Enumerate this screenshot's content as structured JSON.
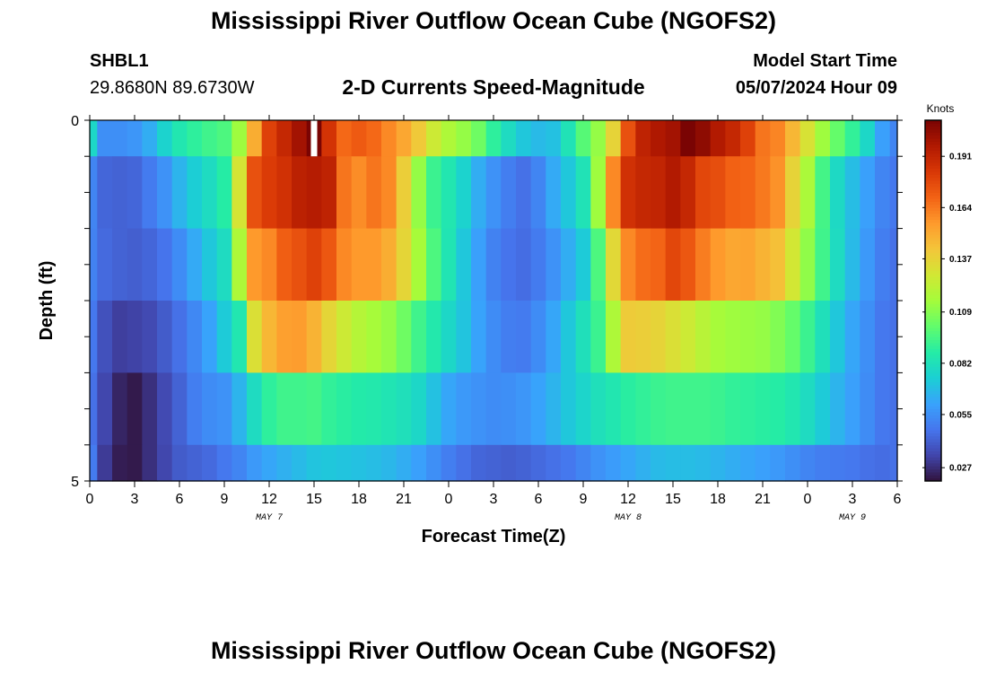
{
  "header": {
    "title": "Mississippi River Outflow Ocean Cube (NGOFS2)",
    "station_id": "SHBL1",
    "station_coords": "29.8680N  89.6730W",
    "plot_title": "2-D Currents Speed-Magnitude",
    "start_label": "Model Start Time",
    "start_value": "05/07/2024 Hour 09"
  },
  "footer": {
    "title": "Mississippi River Outflow Ocean Cube (NGOFS2)"
  },
  "chart_data": {
    "type": "heatmap",
    "title": "2-D Currents Speed-Magnitude",
    "xlabel": "Forecast Time(Z)",
    "ylabel": "Depth (ft)",
    "x_tick_labels": [
      "0",
      "3",
      "6",
      "9",
      "12",
      "15",
      "18",
      "21",
      "0",
      "3",
      "6",
      "9",
      "12",
      "15",
      "18",
      "21",
      "0",
      "3",
      "6"
    ],
    "y_tick_labels": [
      "0",
      "5"
    ],
    "ylim": [
      0,
      5
    ],
    "day_labels": [
      {
        "text": "MAY 7",
        "hour": 12
      },
      {
        "text": "MAY 8",
        "hour": 36
      },
      {
        "text": "MAY 9",
        "hour": 51
      }
    ],
    "colorbar": {
      "label": "Knots",
      "ticks": [
        "0.191",
        "0.164",
        "0.137",
        "0.109",
        "0.082",
        "0.055",
        "0.027"
      ],
      "tick_values": [
        0.191,
        0.164,
        0.137,
        0.109,
        0.082,
        0.055,
        0.027
      ],
      "range": [
        0.02,
        0.21
      ],
      "colors": [
        "#30123b",
        "#4145ab",
        "#4675ed",
        "#39a2fc",
        "#1bcfd4",
        "#24eca6",
        "#61fc6c",
        "#a4fc3b",
        "#d1e834",
        "#f3c63a",
        "#fe9b2d",
        "#f36315",
        "#d93806",
        "#b11901",
        "#7a0403"
      ]
    },
    "time_hours_start": 0,
    "time_hours_end": 54,
    "time_step_hours": 1,
    "layers": [
      {
        "depth_range": [
          0.0,
          0.5
        ],
        "values": [
          0.078,
          0.055,
          0.055,
          0.057,
          0.064,
          0.076,
          0.085,
          0.09,
          0.094,
          0.097,
          0.114,
          0.15,
          0.18,
          0.19,
          0.2,
          0.21,
          0.185,
          0.168,
          0.172,
          0.168,
          0.16,
          0.152,
          0.141,
          0.127,
          0.118,
          0.112,
          0.104,
          0.09,
          0.08,
          0.072,
          0.068,
          0.07,
          0.083,
          0.099,
          0.112,
          0.137,
          0.175,
          0.192,
          0.197,
          0.2,
          0.21,
          0.205,
          0.196,
          0.19,
          0.18,
          0.165,
          0.161,
          0.147,
          0.131,
          0.114,
          0.102,
          0.091,
          0.078,
          0.06,
          0.052
        ]
      },
      {
        "depth_range": [
          0.5,
          1.5
        ],
        "values": [
          0.052,
          0.043,
          0.042,
          0.043,
          0.049,
          0.056,
          0.066,
          0.074,
          0.08,
          0.088,
          0.13,
          0.175,
          0.182,
          0.186,
          0.193,
          0.195,
          0.192,
          0.165,
          0.159,
          0.165,
          0.16,
          0.139,
          0.112,
          0.093,
          0.085,
          0.076,
          0.064,
          0.056,
          0.05,
          0.046,
          0.052,
          0.063,
          0.072,
          0.083,
          0.114,
          0.16,
          0.186,
          0.19,
          0.191,
          0.196,
          0.19,
          0.178,
          0.176,
          0.17,
          0.169,
          0.164,
          0.158,
          0.137,
          0.117,
          0.095,
          0.079,
          0.069,
          0.06,
          0.052,
          0.048
        ]
      },
      {
        "depth_range": [
          1.5,
          2.5
        ],
        "values": [
          0.051,
          0.044,
          0.042,
          0.041,
          0.043,
          0.047,
          0.054,
          0.063,
          0.072,
          0.08,
          0.118,
          0.156,
          0.16,
          0.171,
          0.175,
          0.18,
          0.173,
          0.16,
          0.156,
          0.156,
          0.15,
          0.136,
          0.116,
          0.097,
          0.084,
          0.072,
          0.06,
          0.051,
          0.047,
          0.045,
          0.049,
          0.056,
          0.064,
          0.073,
          0.097,
          0.135,
          0.16,
          0.167,
          0.169,
          0.178,
          0.173,
          0.163,
          0.156,
          0.152,
          0.153,
          0.148,
          0.144,
          0.129,
          0.111,
          0.094,
          0.08,
          0.068,
          0.058,
          0.05,
          0.046
        ]
      },
      {
        "depth_range": [
          2.5,
          3.5
        ],
        "values": [
          0.048,
          0.037,
          0.032,
          0.033,
          0.035,
          0.04,
          0.046,
          0.053,
          0.061,
          0.073,
          0.085,
          0.132,
          0.147,
          0.154,
          0.155,
          0.148,
          0.136,
          0.127,
          0.12,
          0.116,
          0.112,
          0.104,
          0.094,
          0.086,
          0.078,
          0.071,
          0.061,
          0.054,
          0.05,
          0.049,
          0.054,
          0.062,
          0.072,
          0.082,
          0.093,
          0.118,
          0.14,
          0.139,
          0.137,
          0.132,
          0.127,
          0.121,
          0.116,
          0.114,
          0.113,
          0.112,
          0.108,
          0.102,
          0.093,
          0.082,
          0.072,
          0.062,
          0.055,
          0.048,
          0.046
        ]
      },
      {
        "depth_range": [
          3.5,
          4.5
        ],
        "values": [
          0.046,
          0.034,
          0.025,
          0.022,
          0.028,
          0.035,
          0.042,
          0.05,
          0.054,
          0.056,
          0.066,
          0.08,
          0.09,
          0.094,
          0.094,
          0.095,
          0.091,
          0.089,
          0.087,
          0.086,
          0.084,
          0.082,
          0.078,
          0.07,
          0.062,
          0.058,
          0.056,
          0.054,
          0.055,
          0.057,
          0.061,
          0.066,
          0.072,
          0.077,
          0.082,
          0.085,
          0.089,
          0.091,
          0.093,
          0.094,
          0.094,
          0.094,
          0.093,
          0.091,
          0.09,
          0.089,
          0.088,
          0.085,
          0.08,
          0.073,
          0.066,
          0.06,
          0.054,
          0.048,
          0.046
        ]
      },
      {
        "depth_range": [
          4.5,
          5.0
        ],
        "values": [
          0.049,
          0.031,
          0.023,
          0.022,
          0.028,
          0.034,
          0.04,
          0.042,
          0.044,
          0.048,
          0.052,
          0.058,
          0.062,
          0.065,
          0.068,
          0.071,
          0.072,
          0.071,
          0.07,
          0.069,
          0.067,
          0.064,
          0.06,
          0.055,
          0.05,
          0.046,
          0.043,
          0.042,
          0.041,
          0.042,
          0.044,
          0.046,
          0.048,
          0.052,
          0.056,
          0.059,
          0.062,
          0.065,
          0.068,
          0.069,
          0.069,
          0.068,
          0.066,
          0.064,
          0.062,
          0.06,
          0.058,
          0.055,
          0.052,
          0.05,
          0.049,
          0.048,
          0.046,
          0.045,
          0.046
        ]
      }
    ],
    "missing": [
      {
        "hour": 15,
        "layer": 0
      }
    ]
  }
}
